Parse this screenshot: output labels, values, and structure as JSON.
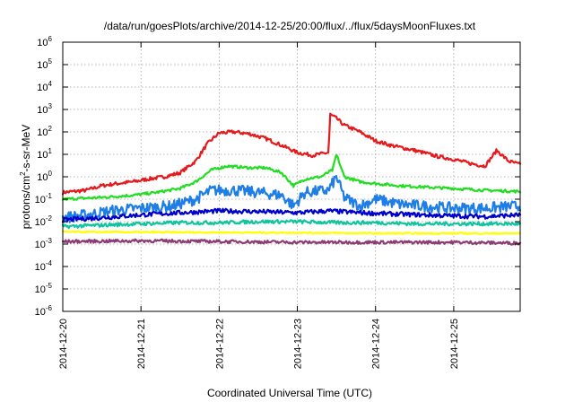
{
  "chart_data": {
    "type": "line",
    "title": "/data/run/goesPlots/archive/2014-12-25/20:00/flux/../flux/5daysMoonFluxes.txt",
    "xlabel": "Coordinated Universal Time (UTC)",
    "ylabel": {
      "base": "protons/cm",
      "sup": "2",
      "rest": "-s-sr-MeV"
    },
    "yscale": "log",
    "ylim": [
      1e-06,
      1000000.0
    ],
    "xlim": [
      0,
      5.85
    ],
    "grid": true,
    "x_ticks": [
      {
        "x": 0,
        "label": "2014-12-20"
      },
      {
        "x": 1,
        "label": "2014-12-21"
      },
      {
        "x": 2,
        "label": "2014-12-22"
      },
      {
        "x": 3,
        "label": "2014-12-23"
      },
      {
        "x": 4,
        "label": "2014-12-24"
      },
      {
        "x": 5,
        "label": "2014-12-25"
      }
    ],
    "y_ticks": [
      {
        "exp": -6,
        "base": "10",
        "sup": "-6"
      },
      {
        "exp": -5,
        "base": "10",
        "sup": "-5"
      },
      {
        "exp": -4,
        "base": "10",
        "sup": "-4"
      },
      {
        "exp": -3,
        "base": "10",
        "sup": "-3"
      },
      {
        "exp": -2,
        "base": "10",
        "sup": "-2"
      },
      {
        "exp": -1,
        "base": "10",
        "sup": "-1"
      },
      {
        "exp": 0,
        "base": "10",
        "sup": "0"
      },
      {
        "exp": 1,
        "base": "10",
        "sup": "1"
      },
      {
        "exp": 2,
        "base": "10",
        "sup": "2"
      },
      {
        "exp": 3,
        "base": "10",
        "sup": "3"
      },
      {
        "exp": 4,
        "base": "10",
        "sup": "4"
      },
      {
        "exp": 5,
        "base": "10",
        "sup": "5"
      },
      {
        "exp": 6,
        "base": "10",
        "sup": "6"
      }
    ],
    "series": [
      {
        "color": "#e41a1c",
        "noise": 0.08,
        "points": [
          [
            0,
            0.2
          ],
          [
            0.3,
            0.25
          ],
          [
            0.5,
            0.4
          ],
          [
            0.7,
            0.5
          ],
          [
            0.9,
            0.6
          ],
          [
            1.1,
            0.8
          ],
          [
            1.3,
            1.0
          ],
          [
            1.5,
            1.5
          ],
          [
            1.7,
            5
          ],
          [
            1.85,
            30
          ],
          [
            2.0,
            90
          ],
          [
            2.2,
            100
          ],
          [
            2.4,
            80
          ],
          [
            2.6,
            50
          ],
          [
            2.8,
            25
          ],
          [
            3.0,
            12
          ],
          [
            3.2,
            9
          ],
          [
            3.4,
            12
          ],
          [
            3.42,
            600
          ],
          [
            3.5,
            400
          ],
          [
            3.6,
            200
          ],
          [
            3.8,
            100
          ],
          [
            4.0,
            40
          ],
          [
            4.2,
            25
          ],
          [
            4.5,
            15
          ],
          [
            4.8,
            8
          ],
          [
            5.0,
            6
          ],
          [
            5.2,
            4
          ],
          [
            5.4,
            3
          ],
          [
            5.55,
            15
          ],
          [
            5.7,
            5
          ],
          [
            5.85,
            3.5
          ]
        ]
      },
      {
        "color": "#22dd22",
        "noise": 0.06,
        "points": [
          [
            0,
            0.1
          ],
          [
            0.5,
            0.12
          ],
          [
            0.9,
            0.15
          ],
          [
            1.2,
            0.2
          ],
          [
            1.5,
            0.3
          ],
          [
            1.7,
            0.6
          ],
          [
            1.9,
            2
          ],
          [
            2.1,
            3
          ],
          [
            2.4,
            2.5
          ],
          [
            2.6,
            2.5
          ],
          [
            2.8,
            1.5
          ],
          [
            2.95,
            0.4
          ],
          [
            3.1,
            0.8
          ],
          [
            3.3,
            1.0
          ],
          [
            3.45,
            2
          ],
          [
            3.5,
            10
          ],
          [
            3.6,
            1
          ],
          [
            3.8,
            0.6
          ],
          [
            4.0,
            0.5
          ],
          [
            4.3,
            0.4
          ],
          [
            4.6,
            0.35
          ],
          [
            5.0,
            0.3
          ],
          [
            5.4,
            0.25
          ],
          [
            5.85,
            0.22
          ]
        ]
      },
      {
        "color": "#1e7ee6",
        "noise": 0.25,
        "points": [
          [
            0,
            0.015
          ],
          [
            0.3,
            0.02
          ],
          [
            0.6,
            0.03
          ],
          [
            1.0,
            0.04
          ],
          [
            1.4,
            0.05
          ],
          [
            1.7,
            0.1
          ],
          [
            1.9,
            0.25
          ],
          [
            2.2,
            0.25
          ],
          [
            2.5,
            0.2
          ],
          [
            2.8,
            0.15
          ],
          [
            2.95,
            0.05
          ],
          [
            3.1,
            0.2
          ],
          [
            3.4,
            0.25
          ],
          [
            3.5,
            1
          ],
          [
            3.6,
            0.12
          ],
          [
            3.8,
            0.05
          ],
          [
            4.0,
            0.1
          ],
          [
            4.3,
            0.06
          ],
          [
            4.6,
            0.05
          ],
          [
            5.0,
            0.04
          ],
          [
            5.4,
            0.04
          ],
          [
            5.85,
            0.05
          ]
        ]
      },
      {
        "color": "#0000cc",
        "noise": 0.1,
        "points": [
          [
            0,
            0.012
          ],
          [
            0.5,
            0.015
          ],
          [
            1.0,
            0.02
          ],
          [
            1.5,
            0.025
          ],
          [
            2.0,
            0.03
          ],
          [
            2.5,
            0.028
          ],
          [
            3.0,
            0.025
          ],
          [
            3.4,
            0.03
          ],
          [
            3.8,
            0.025
          ],
          [
            4.2,
            0.022
          ],
          [
            4.6,
            0.02
          ],
          [
            5.0,
            0.018
          ],
          [
            5.4,
            0.017
          ],
          [
            5.85,
            0.02
          ]
        ]
      },
      {
        "color": "#11c4a0",
        "noise": 0.08,
        "points": [
          [
            0,
            0.006
          ],
          [
            0.5,
            0.007
          ],
          [
            1.0,
            0.008
          ],
          [
            1.5,
            0.009
          ],
          [
            2.0,
            0.009
          ],
          [
            2.5,
            0.01
          ],
          [
            3.0,
            0.01
          ],
          [
            3.5,
            0.009
          ],
          [
            4.0,
            0.009
          ],
          [
            4.5,
            0.008
          ],
          [
            5.0,
            0.008
          ],
          [
            5.5,
            0.008
          ],
          [
            5.85,
            0.008
          ]
        ]
      },
      {
        "color": "#ffff00",
        "noise": 0.03,
        "points": [
          [
            0,
            0.0035
          ],
          [
            1.0,
            0.0034
          ],
          [
            2.0,
            0.0033
          ],
          [
            3.0,
            0.0032
          ],
          [
            4.0,
            0.003
          ],
          [
            5.0,
            0.003
          ],
          [
            5.85,
            0.003
          ]
        ]
      },
      {
        "color": "#8e3b74",
        "noise": 0.07,
        "points": [
          [
            0,
            0.0013
          ],
          [
            1.0,
            0.0014
          ],
          [
            2.0,
            0.0013
          ],
          [
            3.0,
            0.0012
          ],
          [
            4.0,
            0.0012
          ],
          [
            5.0,
            0.0012
          ],
          [
            5.85,
            0.0011
          ]
        ]
      }
    ]
  }
}
